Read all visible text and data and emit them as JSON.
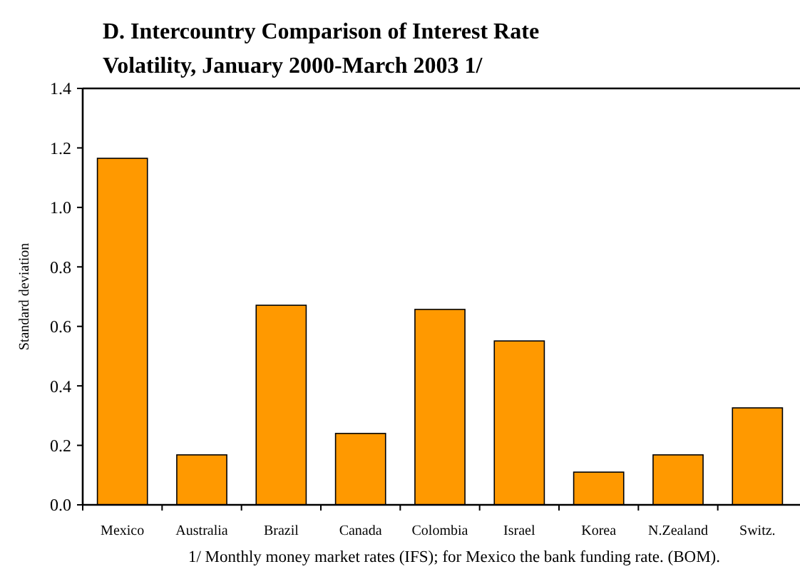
{
  "chart_data": {
    "type": "bar",
    "title": "D. Intercountry Comparison of Interest Rate Volatility, January 2000-March 2003 1/",
    "ylabel": "Standard deviation",
    "categories": [
      "Mexico",
      "Australia",
      "Brazil",
      "Canada",
      "Colombia",
      "Israel",
      "Korea",
      "N.Zealand",
      "Switz."
    ],
    "values": [
      1.165,
      0.168,
      0.671,
      0.24,
      0.657,
      0.551,
      0.11,
      0.168,
      0.326
    ],
    "color": "#ff9900",
    "ylim": [
      0,
      1.4
    ],
    "yticks": [
      {
        "value": 0,
        "label": "0.0"
      },
      0.2,
      0.4,
      0.6,
      0.8,
      {
        "value": 1,
        "label": "1.0"
      },
      1.2,
      1.4
    ],
    "annotations": [
      "1/ Monthly money market rates (IFS); for Mexico the bank funding rate. (BOM)."
    ]
  }
}
